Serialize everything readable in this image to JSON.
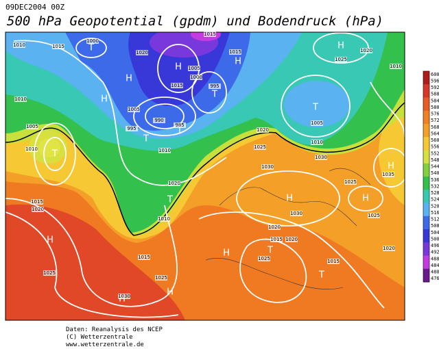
{
  "header": {
    "date": "09DEC2004 00Z",
    "title": "500 hPa Geopotential (gpdm) und Bodendruck (hPa)"
  },
  "map": {
    "centers": [
      "T",
      "H",
      "H",
      "H",
      "H",
      "T",
      "T",
      "T",
      "T",
      "H",
      "T",
      "H",
      "H",
      "H",
      "T",
      "H",
      "H",
      "T",
      "T",
      "H",
      "H"
    ],
    "isobar_labels": [
      1015,
      1010,
      1015,
      1000,
      1020,
      1015,
      1020,
      1025,
      1010,
      1010,
      1015,
      1005,
      995,
      990,
      985,
      1005,
      1000,
      995,
      1020,
      1025,
      1030,
      1010,
      1005,
      1030,
      1025,
      1035,
      1030,
      1020,
      1015,
      1010,
      1015,
      1005,
      1010,
      1020,
      1025,
      1030,
      1025,
      1020,
      1015,
      1020,
      1025,
      1020,
      1025,
      1015,
      1010
    ]
  },
  "colorbar": {
    "labels": [
      600,
      596,
      592,
      588,
      584,
      580,
      576,
      572,
      568,
      564,
      560,
      556,
      552,
      548,
      544,
      540,
      536,
      532,
      528,
      524,
      520,
      516,
      512,
      508,
      504,
      500,
      496,
      492,
      488,
      484,
      480,
      476
    ]
  },
  "footer": {
    "lines": [
      "Daten: Reanalysis des NCEP",
      "(C) Wetterzentrale",
      "www.wetterzentrale.de"
    ]
  }
}
